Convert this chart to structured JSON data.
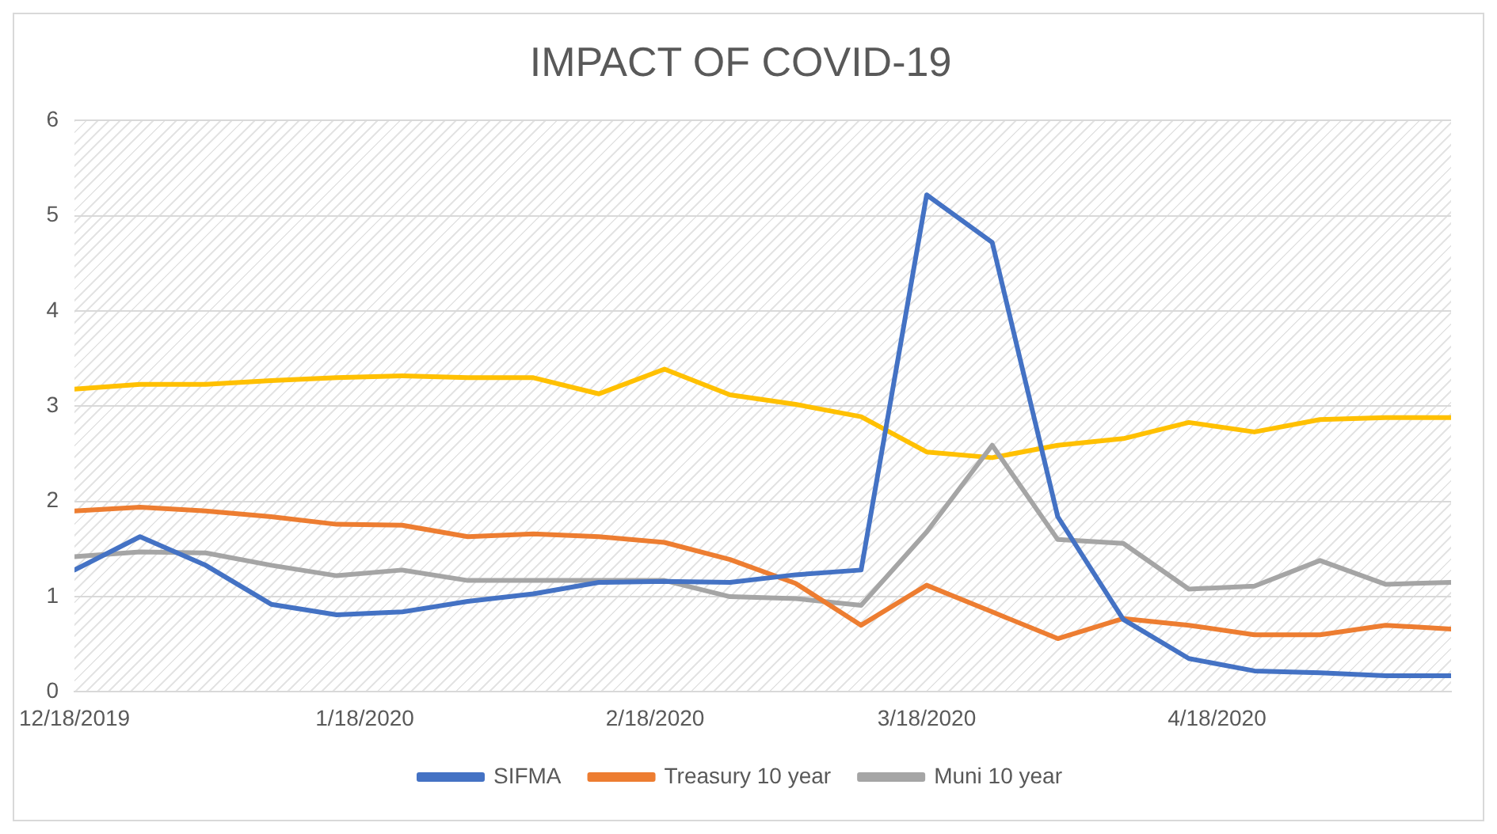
{
  "chart_data": {
    "type": "line",
    "title": "IMPACT OF COVID-19",
    "x": [
      "2019-12-18",
      "2019-12-25",
      "2020-01-01",
      "2020-01-08",
      "2020-01-15",
      "2020-01-22",
      "2020-01-29",
      "2020-02-05",
      "2020-02-12",
      "2020-02-19",
      "2020-02-26",
      "2020-03-04",
      "2020-03-11",
      "2020-03-18",
      "2020-03-25",
      "2020-04-01",
      "2020-04-08",
      "2020-04-15",
      "2020-04-22",
      "2020-04-29",
      "2020-05-06",
      "2020-05-13"
    ],
    "series": [
      {
        "name": "SIFMA",
        "color": "#4472c4",
        "values": [
          1.28,
          1.63,
          1.33,
          0.92,
          0.81,
          0.84,
          0.95,
          1.03,
          1.15,
          1.16,
          1.15,
          1.23,
          1.28,
          5.22,
          4.72,
          1.84,
          0.76,
          0.35,
          0.22,
          0.2,
          0.17,
          0.17
        ]
      },
      {
        "name": "Treasury 10 year",
        "color": "#ed7d31",
        "values": [
          1.9,
          1.94,
          1.9,
          1.84,
          1.76,
          1.75,
          1.63,
          1.66,
          1.63,
          1.57,
          1.39,
          1.14,
          0.7,
          1.12,
          0.84,
          0.56,
          0.77,
          0.7,
          0.6,
          0.6,
          0.7,
          0.66
        ]
      },
      {
        "name": "Muni 10 year",
        "color": "#a5a5a5",
        "values": [
          1.42,
          1.47,
          1.46,
          1.33,
          1.22,
          1.28,
          1.17,
          1.17,
          1.17,
          1.17,
          1.0,
          0.98,
          0.91,
          1.68,
          2.59,
          1.6,
          1.56,
          1.08,
          1.11,
          1.38,
          1.13,
          1.15
        ]
      },
      {
        "color": "#ffc000",
        "values": [
          3.18,
          3.23,
          3.23,
          3.27,
          3.3,
          3.32,
          3.3,
          3.3,
          3.13,
          3.39,
          3.12,
          3.02,
          2.89,
          2.52,
          2.46,
          2.59,
          2.66,
          2.83,
          2.73,
          2.86,
          2.88,
          2.88
        ]
      }
    ],
    "xlim": [
      "2019-12-18",
      "2020-05-13"
    ],
    "xticks": [
      {
        "value": "2019-12-18",
        "label": "12/18/2019"
      },
      {
        "value": "2020-01-18",
        "label": "1/18/2020"
      },
      {
        "value": "2020-02-18",
        "label": "2/18/2020"
      },
      {
        "value": "2020-03-18",
        "label": "3/18/2020"
      },
      {
        "value": "2020-04-18",
        "label": "4/18/2020"
      }
    ],
    "ylim": [
      0,
      6
    ],
    "yticks": [
      0,
      1,
      2,
      3,
      4,
      5,
      6
    ],
    "grid": "y",
    "legend": "bottom",
    "marker": "none",
    "line_style": "solid"
  }
}
